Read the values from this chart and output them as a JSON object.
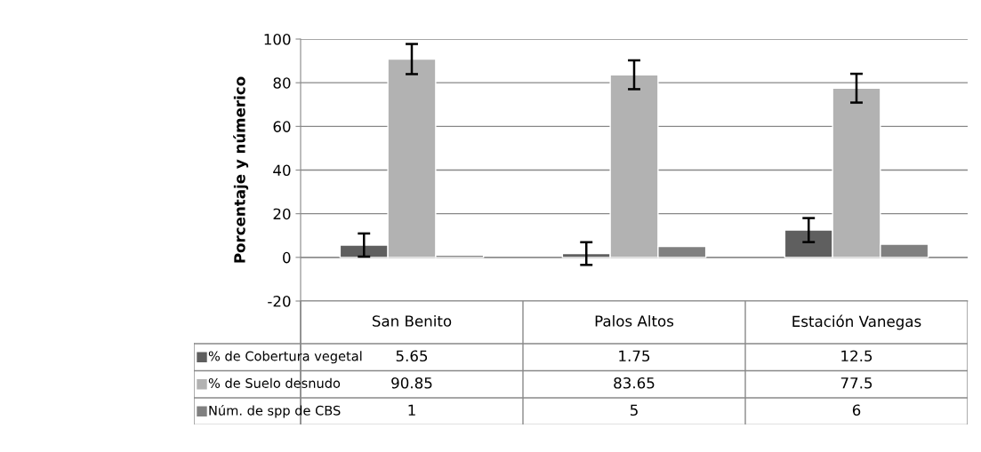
{
  "chart_data": {
    "type": "bar",
    "ylabel": "Porcentaje y númerico",
    "categories": [
      "San Benito",
      "Palos Altos",
      "Estación Vanegas"
    ],
    "series": [
      {
        "name": "% de Cobertura vegetal",
        "color": "#5f5f5f",
        "values": [
          5.65,
          1.75,
          12.5
        ],
        "errors": [
          5.3,
          5.2,
          5.5
        ]
      },
      {
        "name": "% de Suelo desnudo",
        "color": "#b2b2b2",
        "values": [
          90.85,
          83.65,
          77.5
        ],
        "errors": [
          6.9,
          6.6,
          6.6
        ]
      },
      {
        "name": "Núm. de spp de CBS",
        "color": "#808080",
        "values": [
          1,
          5,
          6
        ]
      }
    ],
    "ylim": [
      -20,
      100
    ],
    "yticks": [
      -20,
      0,
      20,
      40,
      60,
      80,
      100
    ],
    "grid": "y",
    "legend": "left",
    "data_labels": true
  }
}
